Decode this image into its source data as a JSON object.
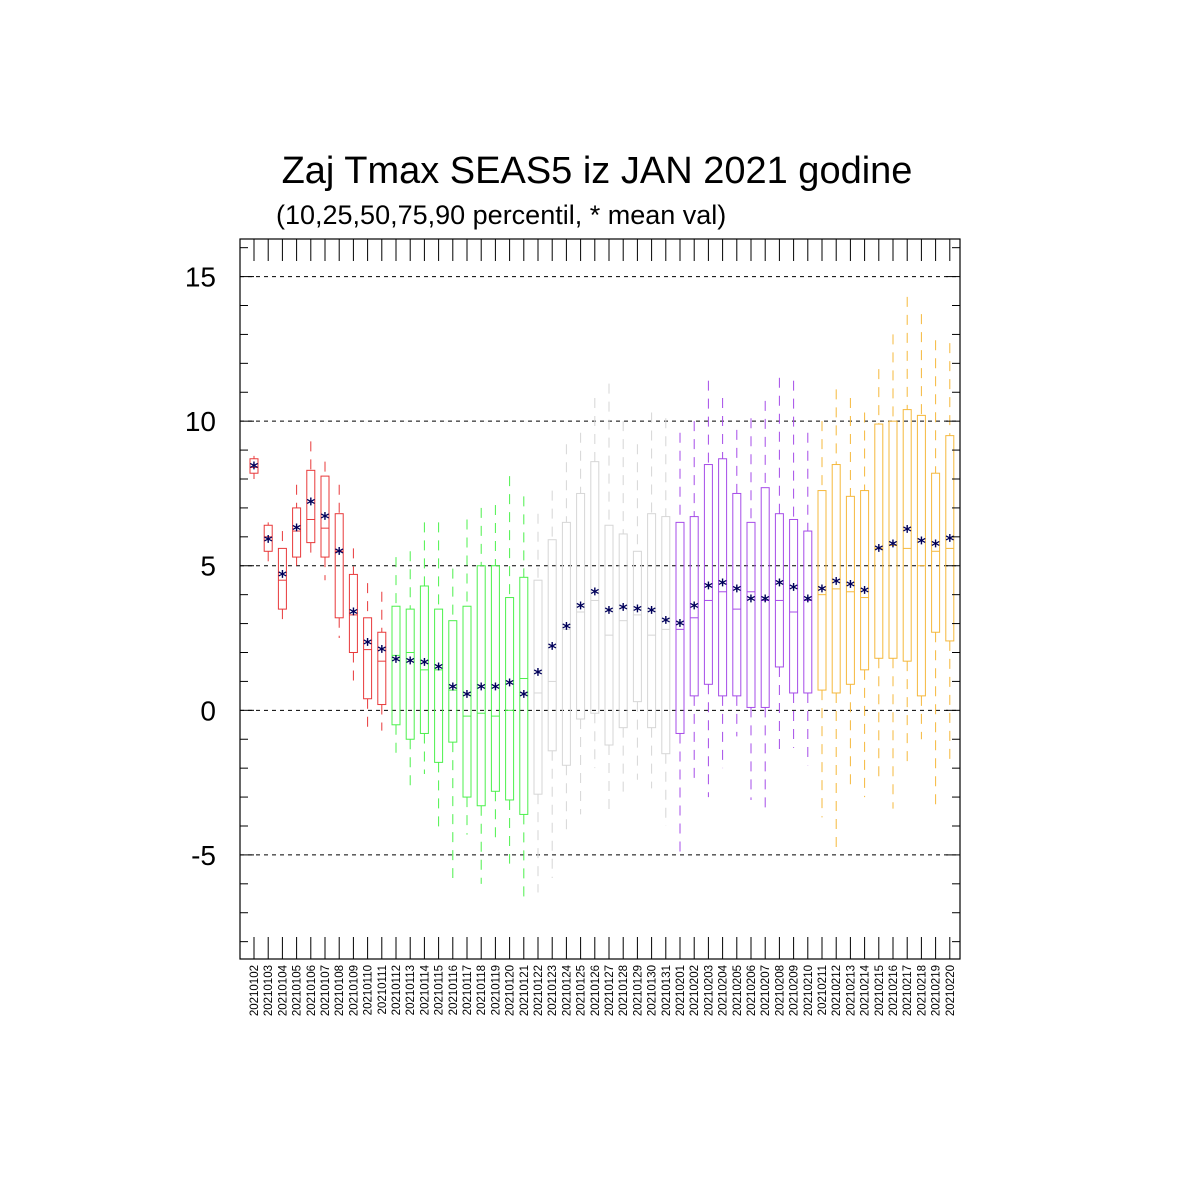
{
  "chart_data": {
    "type": "boxplot",
    "title": "Zaj Tmax SEAS5 iz JAN 2021 godine",
    "subtitle": "(10,25,50,75,90 percentil, * mean val)",
    "ylim": [
      -8.6,
      16.3
    ],
    "yticks": [
      -5,
      0,
      5,
      10,
      15
    ],
    "ytick_labels": [
      "-5",
      "0",
      "5",
      "10",
      "15"
    ],
    "gridlines_y": [
      -5,
      0,
      5,
      10,
      15
    ],
    "colors": {
      "red": "#e8393a",
      "green": "#4cf04c",
      "gray": "#d6d6d6",
      "purple": "#a64ce8",
      "orange": "#f5b83c",
      "mean": "#00005a"
    },
    "categories": [
      "20210102",
      "20210103",
      "20210104",
      "20210105",
      "20210106",
      "20210107",
      "20210108",
      "20210109",
      "20210110",
      "20210111",
      "20210112",
      "20210113",
      "20210114",
      "20210115",
      "20210116",
      "20210117",
      "20210118",
      "20210119",
      "20210120",
      "20210121",
      "20210122",
      "20210123",
      "20210124",
      "20210125",
      "20210126",
      "20210127",
      "20210128",
      "20210129",
      "20210130",
      "20210131",
      "20210201",
      "20210202",
      "20210203",
      "20210204",
      "20210205",
      "20210206",
      "20210207",
      "20210208",
      "20210209",
      "20210210",
      "20210211",
      "20210212",
      "20210213",
      "20210214",
      "20210215",
      "20210216",
      "20210217",
      "20210218",
      "20210219",
      "20210220"
    ],
    "series": [
      {
        "p10": 8.0,
        "p25": 8.2,
        "p50": 8.4,
        "p75": 8.7,
        "p90": 8.8,
        "mean": 8.45,
        "color": "red"
      },
      {
        "p10": 5.1,
        "p25": 5.5,
        "p50": 6.0,
        "p75": 6.4,
        "p90": 6.5,
        "mean": 5.9,
        "color": "red"
      },
      {
        "p10": 2.9,
        "p25": 3.5,
        "p50": 4.5,
        "p75": 5.6,
        "p90": 6.2,
        "mean": 4.7,
        "color": "red"
      },
      {
        "p10": 5.0,
        "p25": 5.3,
        "p50": 6.2,
        "p75": 7.0,
        "p90": 7.8,
        "mean": 6.3,
        "color": "red"
      },
      {
        "p10": 5.3,
        "p25": 5.8,
        "p50": 6.6,
        "p75": 8.3,
        "p90": 9.3,
        "mean": 7.2,
        "color": "red"
      },
      {
        "p10": 4.5,
        "p25": 5.3,
        "p50": 6.3,
        "p75": 8.1,
        "p90": 8.6,
        "mean": 6.7,
        "color": "red"
      },
      {
        "p10": 2.5,
        "p25": 3.2,
        "p50": 5.5,
        "p75": 6.8,
        "p90": 7.8,
        "mean": 5.5,
        "color": "red"
      },
      {
        "p10": 1.0,
        "p25": 2.0,
        "p50": 3.3,
        "p75": 4.7,
        "p90": 5.6,
        "mean": 3.4,
        "color": "red"
      },
      {
        "p10": -0.6,
        "p25": 0.4,
        "p50": 2.1,
        "p75": 3.2,
        "p90": 4.4,
        "mean": 2.35,
        "color": "red"
      },
      {
        "p10": -0.7,
        "p25": 0.2,
        "p50": 1.7,
        "p75": 2.7,
        "p90": 4.1,
        "mean": 2.1,
        "color": "red"
      },
      {
        "p10": -1.7,
        "p25": -0.5,
        "p50": 1.9,
        "p75": 3.6,
        "p90": 5.3,
        "mean": 1.75,
        "color": "green"
      },
      {
        "p10": -2.7,
        "p25": -1.0,
        "p50": 2.0,
        "p75": 3.5,
        "p90": 5.5,
        "mean": 1.7,
        "color": "green"
      },
      {
        "p10": -2.2,
        "p25": -0.8,
        "p50": 1.4,
        "p75": 4.3,
        "p90": 6.5,
        "mean": 1.65,
        "color": "green"
      },
      {
        "p10": -4.2,
        "p25": -1.8,
        "p50": 1.4,
        "p75": 3.5,
        "p90": 6.5,
        "mean": 1.5,
        "color": "green"
      },
      {
        "p10": -5.8,
        "p25": -1.1,
        "p50": 0.7,
        "p75": 3.1,
        "p90": 4.9,
        "mean": 0.8,
        "color": "green"
      },
      {
        "p10": -4.3,
        "p25": -3.0,
        "p50": -0.2,
        "p75": 3.6,
        "p90": 6.6,
        "mean": 0.55,
        "color": "green"
      },
      {
        "p10": -6.0,
        "p25": -3.3,
        "p50": -0.1,
        "p75": 5.0,
        "p90": 7.0,
        "mean": 0.8,
        "color": "green"
      },
      {
        "p10": -4.6,
        "p25": -2.8,
        "p50": -0.2,
        "p75": 5.0,
        "p90": 7.1,
        "mean": 0.8,
        "color": "green"
      },
      {
        "p10": -5.3,
        "p25": -3.1,
        "p50": 0.0,
        "p75": 3.9,
        "p90": 8.1,
        "mean": 0.95,
        "color": "green"
      },
      {
        "p10": -6.7,
        "p25": -3.6,
        "p50": 1.1,
        "p75": 4.6,
        "p90": 7.4,
        "mean": 0.55,
        "color": "green"
      },
      {
        "p10": -6.3,
        "p25": -2.9,
        "p50": 0.6,
        "p75": 4.5,
        "p90": 6.8,
        "mean": 1.3,
        "color": "gray"
      },
      {
        "p10": -5.8,
        "p25": -1.4,
        "p50": 1.0,
        "p75": 5.9,
        "p90": 7.6,
        "mean": 2.2,
        "color": "gray"
      },
      {
        "p10": -4.2,
        "p25": -1.9,
        "p50": 2.8,
        "p75": 6.5,
        "p90": 9.2,
        "mean": 2.9,
        "color": "gray"
      },
      {
        "p10": -3.6,
        "p25": -0.3,
        "p50": 3.4,
        "p75": 7.5,
        "p90": 9.6,
        "mean": 3.6,
        "color": "gray"
      },
      {
        "p10": -2.0,
        "p25": -0.1,
        "p50": 3.8,
        "p75": 8.6,
        "p90": 10.8,
        "mean": 4.1,
        "color": "gray"
      },
      {
        "p10": -3.6,
        "p25": -1.2,
        "p50": 2.6,
        "p75": 6.4,
        "p90": 11.3,
        "mean": 3.45,
        "color": "gray"
      },
      {
        "p10": -2.9,
        "p25": -0.6,
        "p50": 3.1,
        "p75": 6.1,
        "p90": 10.0,
        "mean": 3.55,
        "color": "gray"
      },
      {
        "p10": -2.4,
        "p25": 0.3,
        "p50": 3.3,
        "p75": 5.5,
        "p90": 9.2,
        "mean": 3.5,
        "color": "gray"
      },
      {
        "p10": -2.7,
        "p25": -0.6,
        "p50": 2.6,
        "p75": 6.8,
        "p90": 10.3,
        "mean": 3.45,
        "color": "gray"
      },
      {
        "p10": -4.0,
        "p25": -1.5,
        "p50": 2.8,
        "p75": 6.7,
        "p90": 10.1,
        "mean": 3.1,
        "color": "gray"
      },
      {
        "p10": -5.0,
        "p25": -0.8,
        "p50": 2.8,
        "p75": 6.5,
        "p90": 9.6,
        "mean": 3.0,
        "color": "purple"
      },
      {
        "p10": -2.5,
        "p25": 0.5,
        "p50": 3.2,
        "p75": 6.7,
        "p90": 10.0,
        "mean": 3.6,
        "color": "purple"
      },
      {
        "p10": -3.0,
        "p25": 0.9,
        "p50": 3.8,
        "p75": 8.5,
        "p90": 11.4,
        "mean": 4.3,
        "color": "purple"
      },
      {
        "p10": -2.0,
        "p25": 0.5,
        "p50": 4.1,
        "p75": 8.7,
        "p90": 10.8,
        "mean": 4.4,
        "color": "purple"
      },
      {
        "p10": -0.9,
        "p25": 0.5,
        "p50": 3.5,
        "p75": 7.5,
        "p90": 9.7,
        "mean": 4.2,
        "color": "purple"
      },
      {
        "p10": -3.1,
        "p25": 0.1,
        "p50": 4.1,
        "p75": 6.5,
        "p90": 10.1,
        "mean": 3.85,
        "color": "purple"
      },
      {
        "p10": -3.6,
        "p25": 0.1,
        "p50": 3.8,
        "p75": 7.7,
        "p90": 10.7,
        "mean": 3.85,
        "color": "purple"
      },
      {
        "p10": -1.4,
        "p25": 1.5,
        "p50": 3.8,
        "p75": 6.8,
        "p90": 11.5,
        "mean": 4.4,
        "color": "purple"
      },
      {
        "p10": -1.3,
        "p25": 0.6,
        "p50": 3.4,
        "p75": 6.6,
        "p90": 11.4,
        "mean": 4.25,
        "color": "purple"
      },
      {
        "p10": -1.9,
        "p25": 0.6,
        "p50": 3.8,
        "p75": 6.2,
        "p90": 9.6,
        "mean": 3.85,
        "color": "purple"
      },
      {
        "p10": -3.7,
        "p25": 0.7,
        "p50": 4.0,
        "p75": 7.6,
        "p90": 10.0,
        "mean": 4.2,
        "color": "orange"
      },
      {
        "p10": -4.9,
        "p25": 0.6,
        "p50": 4.2,
        "p75": 8.5,
        "p90": 11.1,
        "mean": 4.45,
        "color": "orange"
      },
      {
        "p10": -2.6,
        "p25": 0.9,
        "p50": 4.1,
        "p75": 7.4,
        "p90": 10.8,
        "mean": 4.35,
        "color": "orange"
      },
      {
        "p10": -3.0,
        "p25": 1.4,
        "p50": 3.9,
        "p75": 7.6,
        "p90": 10.3,
        "mean": 4.15,
        "color": "orange"
      },
      {
        "p10": -2.4,
        "p25": 1.8,
        "p50": 5.6,
        "p75": 9.9,
        "p90": 11.8,
        "mean": 5.6,
        "color": "orange"
      },
      {
        "p10": -3.4,
        "p25": 1.8,
        "p50": 5.7,
        "p75": 10.0,
        "p90": 13.0,
        "mean": 5.75,
        "color": "orange"
      },
      {
        "p10": -2.0,
        "p25": 1.7,
        "p50": 5.6,
        "p75": 10.4,
        "p90": 14.3,
        "mean": 6.25,
        "color": "orange"
      },
      {
        "p10": -1.0,
        "p25": 0.5,
        "p50": 5.0,
        "p75": 10.2,
        "p90": 13.7,
        "mean": 5.85,
        "color": "orange"
      },
      {
        "p10": -3.3,
        "p25": 2.7,
        "p50": 5.5,
        "p75": 8.2,
        "p90": 12.8,
        "mean": 5.75,
        "color": "orange"
      },
      {
        "p10": -1.9,
        "p25": 2.4,
        "p50": 5.6,
        "p75": 9.5,
        "p90": 12.7,
        "mean": 5.95,
        "color": "orange"
      }
    ]
  }
}
